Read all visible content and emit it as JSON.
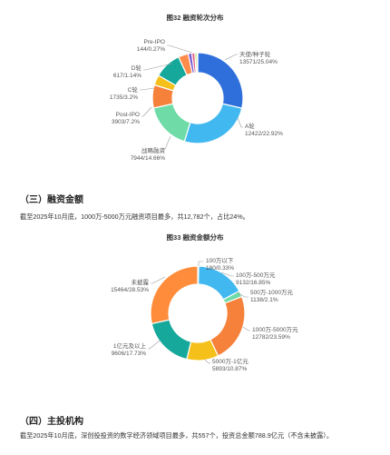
{
  "chart_data": [
    {
      "type": "pie",
      "title": "图32 融资轮次分布",
      "slices": [
        {
          "name": "天使/种子轮",
          "value": 13571,
          "pct": "25.04%",
          "color": "#2f6fdc"
        },
        {
          "name": "A轮",
          "value": 12422,
          "pct": "22.92%",
          "color": "#42b8f0"
        },
        {
          "name": "战略融资",
          "value": 7944,
          "pct": "14.66%",
          "color": "#6fdca8"
        },
        {
          "name": "Post-IPO",
          "value": 3903,
          "pct": "7.2%",
          "color": "#f5813a"
        },
        {
          "name": "C轮",
          "value": 1735,
          "pct": "3.2%",
          "color": "#f5c01a"
        },
        {
          "name": "",
          "value": 4600,
          "pct": "",
          "color": "#15a89b"
        },
        {
          "name": "",
          "value": 1700,
          "pct": "",
          "color": "#ff8c4a"
        },
        {
          "name": "D轮",
          "value": 617,
          "pct": "1.14%",
          "color": "#7a5bd6"
        },
        {
          "name": "",
          "value": 500,
          "pct": "",
          "color": "#e25c8a"
        },
        {
          "name": "",
          "value": 350,
          "pct": "",
          "color": "#b0e05a"
        },
        {
          "name": "Pre-IPO",
          "value": 144,
          "pct": "0.27%",
          "color": "#8a8a8a"
        }
      ],
      "labels": [
        {
          "line1": "天使/种子轮",
          "line2": "13571/25.04%"
        },
        {
          "line1": "A轮",
          "line2": "12422/22.92%"
        },
        {
          "line1": "战略融资",
          "line2": "7944/14.66%"
        },
        {
          "line1": "Post-IPO",
          "line2": "3903/7.2%"
        },
        {
          "line1": "C轮",
          "line2": "1735/3.2%"
        },
        {
          "line1": "D轮",
          "line2": "617/1.14%"
        },
        {
          "line1": "Pre-IPO",
          "line2": "144/0.27%"
        }
      ]
    },
    {
      "type": "pie",
      "title": "图33 融资金额分布",
      "slices": [
        {
          "name": "100万以下",
          "value": 180,
          "pct": "0.33%",
          "color": "#2f6fdc"
        },
        {
          "name": "100万-500万元",
          "value": 9132,
          "pct": "16.85%",
          "color": "#42b8f0"
        },
        {
          "name": "500万-1000万元",
          "value": 1138,
          "pct": "2.1%",
          "color": "#6fdca8"
        },
        {
          "name": "1000万-5000万元",
          "value": 12782,
          "pct": "23.59%",
          "color": "#f5813a"
        },
        {
          "name": "5000万-1亿元",
          "value": 5893,
          "pct": "10.87%",
          "color": "#f5c01a"
        },
        {
          "name": "1亿元及以上",
          "value": 9606,
          "pct": "17.73%",
          "color": "#15a89b"
        },
        {
          "name": "未披露",
          "value": 15464,
          "pct": "28.53%",
          "color": "#ff8c3a"
        }
      ],
      "labels": [
        {
          "line1": "100万以下",
          "line2": "180/0.33%"
        },
        {
          "line1": "100万-500万元",
          "line2": "9132/16.85%"
        },
        {
          "line1": "500万-1000万元",
          "line2": "1138/2.1%"
        },
        {
          "line1": "1000万-5000万元",
          "line2": "12782/23.59%"
        },
        {
          "line1": "5000万-1亿元",
          "line2": "5893/10.87%"
        },
        {
          "line1": "1亿元及以上",
          "line2": "9606/17.73%"
        },
        {
          "line1": "未披露",
          "line2": "15464/28.53%"
        }
      ]
    }
  ],
  "section3": {
    "heading": "（三）融资金额",
    "text": "截至2025年10月底，1000万-5000万元融资项目最多，共12,782个，占比24%。"
  },
  "section4": {
    "heading": "（四）主投机构",
    "text": "截至2025年10月底，深创投投资的数字经济领域项目最多，共557个，投资总金额788.9亿元（不含未披露）。"
  }
}
